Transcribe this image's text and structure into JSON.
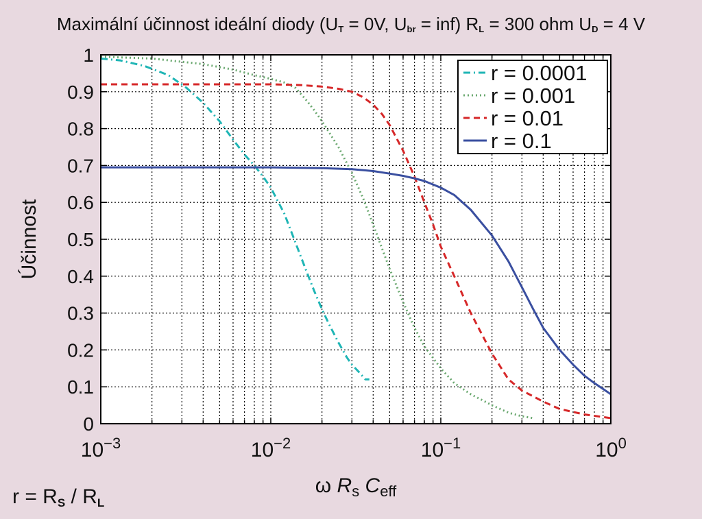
{
  "chart_data": {
    "type": "line",
    "title": {
      "prefix": "Maximální účinnost ideální diody (U",
      "ut_sub": "T",
      "ut_val": " = 0V, U",
      "ubr_sub": "br",
      "ubr_val": " = inf) R",
      "rl_sub": "L",
      "rl_val": " = 300 ohm U",
      "ud_sub": "D",
      "ud_val": " = 4 V"
    },
    "ylabel": "Účinnost",
    "xlabel": {
      "omega": "ω ",
      "r": "R",
      "r_sub": "s",
      "c": " C",
      "c_sub": "eff"
    },
    "x_scale": "log",
    "xlim": [
      0.001,
      1
    ],
    "ylim": [
      0,
      1
    ],
    "grid": true,
    "legend_position": "top-right",
    "x_ticks": [
      {
        "value": 0.001,
        "base": "10",
        "exp": "−3"
      },
      {
        "value": 0.01,
        "base": "10",
        "exp": "−2"
      },
      {
        "value": 0.1,
        "base": "10",
        "exp": "−1"
      },
      {
        "value": 1,
        "base": "10",
        "exp": "0"
      }
    ],
    "y_ticks": [
      "0",
      "0.1",
      "0.2",
      "0.3",
      "0.4",
      "0.5",
      "0.6",
      "0.7",
      "0.8",
      "0.9",
      "1"
    ],
    "series": [
      {
        "name": "r = 0.0001",
        "color": "#1fb5b5",
        "dash": "dashdot",
        "x": [
          0.001,
          0.0013,
          0.0018,
          0.0025,
          0.0032,
          0.004,
          0.005,
          0.006,
          0.007,
          0.008,
          0.009,
          0.01,
          0.012,
          0.014,
          0.016,
          0.018,
          0.02,
          0.022,
          0.025,
          0.028,
          0.03,
          0.033,
          0.036,
          0.038
        ],
        "y": [
          0.99,
          0.985,
          0.97,
          0.945,
          0.91,
          0.87,
          0.82,
          0.77,
          0.73,
          0.7,
          0.67,
          0.64,
          0.57,
          0.49,
          0.42,
          0.36,
          0.31,
          0.27,
          0.22,
          0.18,
          0.16,
          0.14,
          0.12,
          0.12
        ]
      },
      {
        "name": "r = 0.001",
        "color": "#6aa86f",
        "dash": "dot",
        "x": [
          0.001,
          0.002,
          0.004,
          0.006,
          0.008,
          0.01,
          0.012,
          0.014,
          0.016,
          0.018,
          0.02,
          0.025,
          0.03,
          0.035,
          0.04,
          0.05,
          0.06,
          0.07,
          0.08,
          0.1,
          0.12,
          0.15,
          0.2,
          0.25,
          0.3,
          0.35
        ],
        "y": [
          0.995,
          0.99,
          0.975,
          0.96,
          0.945,
          0.935,
          0.925,
          0.91,
          0.88,
          0.85,
          0.82,
          0.75,
          0.68,
          0.61,
          0.54,
          0.42,
          0.33,
          0.26,
          0.21,
          0.15,
          0.11,
          0.08,
          0.05,
          0.03,
          0.02,
          0.015
        ]
      },
      {
        "name": "r = 0.01",
        "color": "#d62728",
        "dash": "dash",
        "x": [
          0.001,
          0.003,
          0.006,
          0.01,
          0.015,
          0.02,
          0.025,
          0.03,
          0.035,
          0.04,
          0.045,
          0.05,
          0.06,
          0.07,
          0.08,
          0.09,
          0.1,
          0.12,
          0.15,
          0.2,
          0.25,
          0.3,
          0.4,
          0.5,
          0.7,
          1.0
        ],
        "y": [
          0.92,
          0.92,
          0.92,
          0.92,
          0.918,
          0.914,
          0.908,
          0.9,
          0.885,
          0.865,
          0.84,
          0.81,
          0.74,
          0.67,
          0.6,
          0.54,
          0.48,
          0.4,
          0.3,
          0.19,
          0.12,
          0.09,
          0.06,
          0.04,
          0.025,
          0.015
        ]
      },
      {
        "name": "r = 0.1",
        "color": "#3a4fa0",
        "dash": "solid",
        "x": [
          0.001,
          0.005,
          0.01,
          0.02,
          0.03,
          0.04,
          0.05,
          0.06,
          0.07,
          0.08,
          0.1,
          0.12,
          0.15,
          0.2,
          0.25,
          0.3,
          0.35,
          0.4,
          0.5,
          0.6,
          0.7,
          0.8,
          1.0
        ],
        "y": [
          0.695,
          0.695,
          0.695,
          0.693,
          0.69,
          0.685,
          0.678,
          0.672,
          0.665,
          0.658,
          0.64,
          0.62,
          0.58,
          0.51,
          0.44,
          0.37,
          0.31,
          0.26,
          0.2,
          0.16,
          0.13,
          0.11,
          0.08
        ]
      }
    ]
  },
  "footer": {
    "r": "r = R",
    "s": "S",
    "div": " / R",
    "l": "L"
  }
}
